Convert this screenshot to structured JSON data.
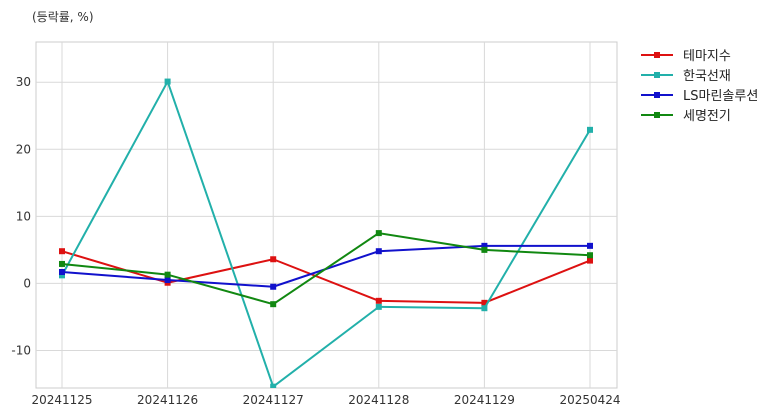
{
  "chart_data": {
    "type": "line",
    "unit_label": "(등락률, %)",
    "categories": [
      "20241125",
      "20241126",
      "20241127",
      "20241128",
      "20241129",
      "20250424"
    ],
    "ylim": [
      -15.6,
      36
    ],
    "yticks": [
      -10,
      0,
      10,
      20,
      30
    ],
    "grid": true,
    "legend_position": "right-top",
    "series": [
      {
        "name": "테마지수",
        "color": "#dd1111",
        "values": [
          4.8,
          0.1,
          3.6,
          -2.6,
          -2.9,
          3.4
        ]
      },
      {
        "name": "한국선재",
        "color": "#22b0aa",
        "values": [
          1.2,
          30.1,
          -15.4,
          -3.5,
          -3.7,
          22.9
        ]
      },
      {
        "name": "LS마린솔루션",
        "color": "#1111cc",
        "values": [
          1.7,
          0.5,
          -0.5,
          4.8,
          5.6,
          5.6
        ]
      },
      {
        "name": "세명전기",
        "color": "#118811",
        "values": [
          2.9,
          1.3,
          -3.1,
          7.5,
          5.0,
          4.2
        ]
      }
    ]
  }
}
